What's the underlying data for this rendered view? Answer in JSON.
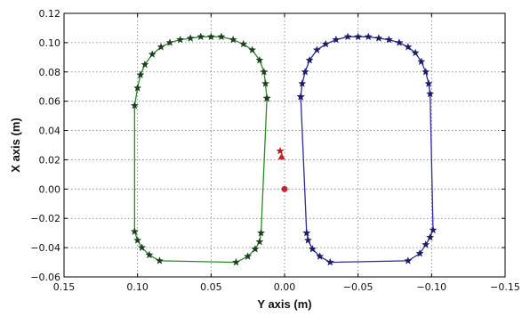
{
  "chart_data": {
    "type": "scatter",
    "xlabel": "Y axis (m)",
    "ylabel": "X axis (m)",
    "xlim": [
      0.15,
      -0.15
    ],
    "ylim": [
      -0.06,
      0.12
    ],
    "x_ticks": [
      0.15,
      0.1,
      0.05,
      0.0,
      -0.05,
      -0.1,
      -0.15
    ],
    "x_tick_labels": [
      "0.15",
      "0.10",
      "0.05",
      "0.00",
      "−0.05",
      "−0.10",
      "−0.15"
    ],
    "y_ticks": [
      -0.06,
      -0.04,
      -0.02,
      0.0,
      0.02,
      0.04,
      0.06,
      0.08,
      0.1,
      0.12
    ],
    "y_tick_labels": [
      "−0.06",
      "−0.04",
      "−0.02",
      "0.00",
      "0.02",
      "0.04",
      "0.06",
      "0.08",
      "0.10",
      "0.12"
    ],
    "grid": true,
    "grid_style": "dotted",
    "series": [
      {
        "color": "#2a8a2a",
        "marker": "star",
        "marker_color": "#1f3d1f",
        "line": true,
        "points": [
          {
            "x": 0.012,
            "y": 0.062
          },
          {
            "x": 0.013,
            "y": 0.072
          },
          {
            "x": 0.014,
            "y": 0.08
          },
          {
            "x": 0.017,
            "y": 0.088
          },
          {
            "x": 0.022,
            "y": 0.095
          },
          {
            "x": 0.028,
            "y": 0.099
          },
          {
            "x": 0.035,
            "y": 0.102
          },
          {
            "x": 0.043,
            "y": 0.104
          },
          {
            "x": 0.05,
            "y": 0.104
          },
          {
            "x": 0.057,
            "y": 0.104
          },
          {
            "x": 0.064,
            "y": 0.103
          },
          {
            "x": 0.071,
            "y": 0.102
          },
          {
            "x": 0.078,
            "y": 0.1
          },
          {
            "x": 0.084,
            "y": 0.097
          },
          {
            "x": 0.09,
            "y": 0.092
          },
          {
            "x": 0.095,
            "y": 0.085
          },
          {
            "x": 0.098,
            "y": 0.078
          },
          {
            "x": 0.1,
            "y": 0.069
          },
          {
            "x": 0.102,
            "y": 0.057
          },
          {
            "x": 0.102,
            "y": -0.029
          },
          {
            "x": 0.1,
            "y": -0.035
          },
          {
            "x": 0.097,
            "y": -0.04
          },
          {
            "x": 0.092,
            "y": -0.045
          },
          {
            "x": 0.085,
            "y": -0.049
          },
          {
            "x": 0.033,
            "y": -0.05
          },
          {
            "x": 0.025,
            "y": -0.046
          },
          {
            "x": 0.02,
            "y": -0.041
          },
          {
            "x": 0.017,
            "y": -0.036
          },
          {
            "x": 0.016,
            "y": -0.03
          },
          {
            "x": 0.012,
            "y": 0.062
          }
        ]
      },
      {
        "color": "#2b2b9a",
        "marker": "star",
        "marker_color": "#1c1c66",
        "line": true,
        "points": [
          {
            "x": -0.011,
            "y": 0.063
          },
          {
            "x": -0.012,
            "y": 0.072
          },
          {
            "x": -0.014,
            "y": 0.08
          },
          {
            "x": -0.017,
            "y": 0.088
          },
          {
            "x": -0.022,
            "y": 0.095
          },
          {
            "x": -0.028,
            "y": 0.099
          },
          {
            "x": -0.035,
            "y": 0.102
          },
          {
            "x": -0.043,
            "y": 0.104
          },
          {
            "x": -0.05,
            "y": 0.104
          },
          {
            "x": -0.057,
            "y": 0.104
          },
          {
            "x": -0.064,
            "y": 0.103
          },
          {
            "x": -0.071,
            "y": 0.102
          },
          {
            "x": -0.078,
            "y": 0.1
          },
          {
            "x": -0.084,
            "y": 0.097
          },
          {
            "x": -0.089,
            "y": 0.093
          },
          {
            "x": -0.093,
            "y": 0.087
          },
          {
            "x": -0.096,
            "y": 0.08
          },
          {
            "x": -0.098,
            "y": 0.072
          },
          {
            "x": -0.099,
            "y": 0.065
          },
          {
            "x": -0.101,
            "y": -0.028
          },
          {
            "x": -0.099,
            "y": -0.033
          },
          {
            "x": -0.096,
            "y": -0.038
          },
          {
            "x": -0.092,
            "y": -0.044
          },
          {
            "x": -0.084,
            "y": -0.049
          },
          {
            "x": -0.031,
            "y": -0.05
          },
          {
            "x": -0.024,
            "y": -0.046
          },
          {
            "x": -0.019,
            "y": -0.041
          },
          {
            "x": -0.016,
            "y": -0.035
          },
          {
            "x": -0.015,
            "y": -0.03
          },
          {
            "x": -0.011,
            "y": 0.063
          }
        ]
      }
    ],
    "extra_points": [
      {
        "x": 0.003,
        "y": 0.026,
        "marker": "star",
        "color": "#b02020"
      },
      {
        "x": 0.002,
        "y": 0.022,
        "marker": "triangle",
        "color": "#c0282a"
      },
      {
        "x": 0.0,
        "y": 0.0,
        "marker": "circle",
        "color": "#c0282a"
      }
    ]
  }
}
